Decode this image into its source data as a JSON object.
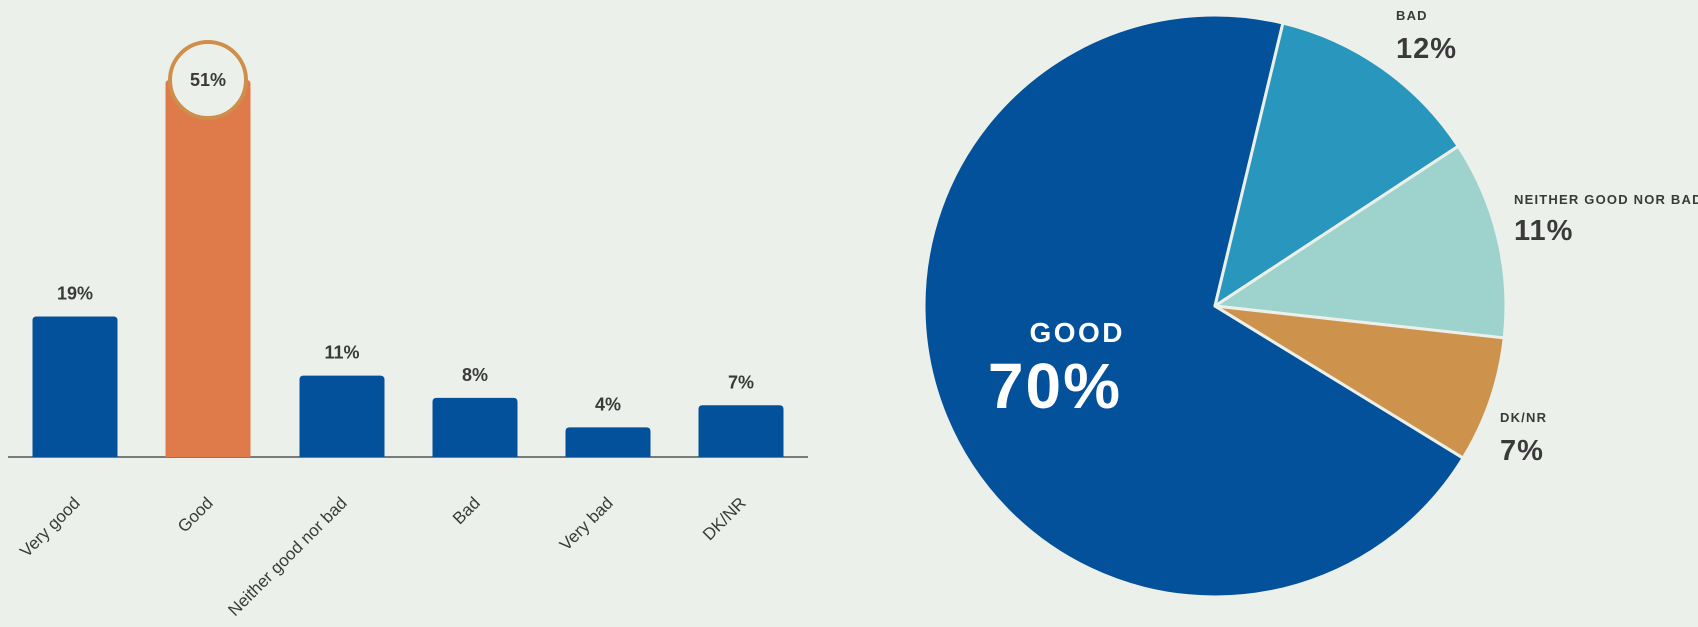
{
  "chart_data": [
    {
      "type": "bar",
      "categories": [
        "Very good",
        "Good",
        "Neither good nor bad",
        "Bad",
        "Very bad",
        "DK/NR"
      ],
      "values": [
        19,
        51,
        11,
        8,
        4,
        7
      ],
      "value_labels": [
        "19%",
        "51%",
        "11%",
        "8%",
        "4%",
        "7%"
      ],
      "highlighted_category": "Good",
      "colors": {
        "bar": "#03509b",
        "highlight": "#df7a4a",
        "highlight_ring": "#cf8f4b",
        "highlight_bubble": "#ecf0eb",
        "axis": "#7a7a7a"
      },
      "ylim": [
        0,
        51
      ]
    },
    {
      "type": "pie",
      "slices": [
        {
          "label": "GOOD",
          "value": 70,
          "value_label": "70%",
          "color": "#03509b"
        },
        {
          "label": "BAD",
          "value": 12,
          "value_label": "12%",
          "color": "#2996be"
        },
        {
          "label": "NEITHER GOOD NOR BAD",
          "value": 11,
          "value_label": "11%",
          "color": "#9dd3cc"
        },
        {
          "label": "DK/NR",
          "value": 7,
          "value_label": "7%",
          "color": "#cd934c"
        }
      ]
    }
  ]
}
